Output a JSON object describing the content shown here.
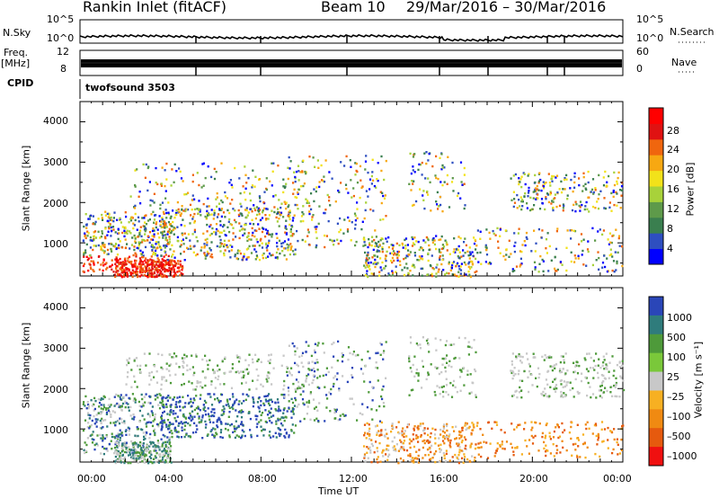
{
  "header": {
    "title": "Rankin Inlet (fitACF)",
    "beam": "Beam 10",
    "date_range": "29/Mar/2016 – 30/Mar/2016"
  },
  "top_panels": {
    "nsky_label": "N.Sky",
    "nsky_ticks": [
      "10^5",
      "10^0"
    ],
    "nsearch_label": "N.Search",
    "freq_label": "Freq.",
    "freq_unit": "[MHz]",
    "freq_ticks": [
      "12",
      "8"
    ],
    "nave_label": "Nave",
    "nave_ticks": [
      "60",
      "0"
    ],
    "cpid_label": "CPID",
    "cpid_value": "twofsound 3503"
  },
  "colors": {
    "power": [
      "#0000ff",
      "#2e4fc0",
      "#3a7f4f",
      "#5e9a4a",
      "#a8d23a",
      "#f2e21a",
      "#f7a812",
      "#f0660e",
      "#e01212",
      "#ff0000"
    ],
    "velocity": [
      "#2a46b8",
      "#2f7c7c",
      "#4e9a3a",
      "#7ac83a",
      "#c8c8c8",
      "#f7b022",
      "#f08a12",
      "#e65a0e",
      "#f01010"
    ]
  },
  "chart_data": [
    {
      "type": "heatmap",
      "name": "Power panel",
      "ylabel": "Slant Range [km]",
      "yticks": [
        1000,
        2000,
        3000,
        4000
      ],
      "ylim": [
        180,
        4500
      ],
      "xlim": [
        0,
        24
      ],
      "colorbar": {
        "label": "Power [dB]",
        "ticks": [
          "4",
          "8",
          "12",
          "16",
          "20",
          "24",
          "28"
        ],
        "range": [
          0,
          32
        ]
      }
    },
    {
      "type": "heatmap",
      "name": "Velocity panel",
      "ylabel": "Slant Range [km]",
      "yticks": [
        1000,
        2000,
        3000,
        4000
      ],
      "ylim": [
        180,
        4500
      ],
      "xlim": [
        0,
        24
      ],
      "xticks": [
        "00:00",
        "04:00",
        "08:00",
        "12:00",
        "16:00",
        "20:00",
        "00:00"
      ],
      "xlabel": "Time UT",
      "colorbar": {
        "label": "Velocity [m s⁻¹]",
        "ticks": [
          "1000",
          "500",
          "100",
          "25",
          "–25",
          "–100",
          "–500",
          "–1000"
        ]
      }
    }
  ]
}
